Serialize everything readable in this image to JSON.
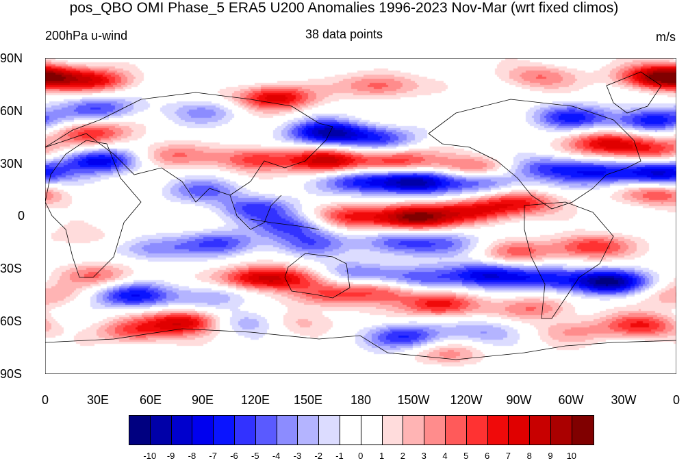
{
  "header": {
    "title": "pos_QBO OMI Phase_5 ERA5 U200 Anomalies 1996-2023 Nov-Mar (wrt fixed climos)",
    "left_subtitle": "200hPa u-wind",
    "center_subtitle": "38 data points",
    "right_subtitle": "m/s"
  },
  "axes": {
    "lat_labels": [
      "90N",
      "60N",
      "30N",
      "0",
      "30S",
      "60S",
      "90S"
    ],
    "lon_labels": [
      "0",
      "30E",
      "60E",
      "90E",
      "120E",
      "150E",
      "180",
      "150W",
      "120W",
      "90W",
      "60W",
      "30W",
      "0"
    ]
  },
  "colorbar": {
    "colors": [
      "#000080",
      "#0000a8",
      "#0000cd",
      "#0000ef",
      "#0a14ff",
      "#3232ff",
      "#5a5aff",
      "#8c8cff",
      "#b4b4ff",
      "#dcdcff",
      "#ffffff",
      "#ffffff",
      "#ffdcdc",
      "#ffb4b4",
      "#ff8c8c",
      "#ff5a5a",
      "#ff3232",
      "#f00a0a",
      "#e00000",
      "#c80000",
      "#aa0000",
      "#800000"
    ],
    "labels": [
      "-10",
      "-9",
      "-8",
      "-7",
      "-6",
      "-5",
      "-4",
      "-3",
      "-2",
      "-1",
      "0",
      "1",
      "2",
      "3",
      "4",
      "5",
      "6",
      "7",
      "8",
      "9",
      "10"
    ]
  },
  "field_blobs": [
    {
      "lon": 0,
      "lat": 80,
      "v": 7
    },
    {
      "lon": 30,
      "lat": 78,
      "v": 6
    },
    {
      "lon": 130,
      "lat": 68,
      "v": 8
    },
    {
      "lon": 190,
      "lat": 75,
      "v": 5
    },
    {
      "lon": 280,
      "lat": 80,
      "v": 4
    },
    {
      "lon": 345,
      "lat": 80,
      "v": 6
    },
    {
      "lon": 30,
      "lat": 62,
      "v": -5
    },
    {
      "lon": 90,
      "lat": 60,
      "v": -3
    },
    {
      "lon": 300,
      "lat": 57,
      "v": -6
    },
    {
      "lon": 345,
      "lat": 55,
      "v": -7
    },
    {
      "lon": 25,
      "lat": 48,
      "v": 6
    },
    {
      "lon": 160,
      "lat": 48,
      "v": -9
    },
    {
      "lon": 190,
      "lat": 45,
      "v": -5
    },
    {
      "lon": 320,
      "lat": 42,
      "v": 7
    },
    {
      "lon": 345,
      "lat": 38,
      "v": 5
    },
    {
      "lon": 30,
      "lat": 32,
      "v": -8
    },
    {
      "lon": 70,
      "lat": 35,
      "v": 4
    },
    {
      "lon": 120,
      "lat": 33,
      "v": 6
    },
    {
      "lon": 160,
      "lat": 32,
      "v": 8
    },
    {
      "lon": 200,
      "lat": 32,
      "v": 6
    },
    {
      "lon": 245,
      "lat": 28,
      "v": 5
    },
    {
      "lon": 210,
      "lat": 20,
      "v": -9
    },
    {
      "lon": 180,
      "lat": 20,
      "v": -6
    },
    {
      "lon": 250,
      "lat": 20,
      "v": -5
    },
    {
      "lon": 285,
      "lat": 28,
      "v": -5
    },
    {
      "lon": 315,
      "lat": 25,
      "v": -6
    },
    {
      "lon": 350,
      "lat": 25,
      "v": -8
    },
    {
      "lon": 350,
      "lat": 13,
      "v": 5
    },
    {
      "lon": 90,
      "lat": 15,
      "v": -4
    },
    {
      "lon": 120,
      "lat": 5,
      "v": -5
    },
    {
      "lon": 140,
      "lat": -5,
      "v": -5
    },
    {
      "lon": 150,
      "lat": -15,
      "v": -4
    },
    {
      "lon": 210,
      "lat": 0,
      "v": 10
    },
    {
      "lon": 175,
      "lat": 0,
      "v": 6
    },
    {
      "lon": 245,
      "lat": 3,
      "v": 6
    },
    {
      "lon": 270,
      "lat": 8,
      "v": 6
    },
    {
      "lon": 100,
      "lat": -15,
      "v": -5
    },
    {
      "lon": 60,
      "lat": -18,
      "v": -4
    },
    {
      "lon": 20,
      "lat": -12,
      "v": 2
    },
    {
      "lon": 200,
      "lat": -15,
      "v": -5
    },
    {
      "lon": 230,
      "lat": -15,
      "v": -3
    },
    {
      "lon": 270,
      "lat": -20,
      "v": 4
    },
    {
      "lon": 310,
      "lat": -17,
      "v": 6
    },
    {
      "lon": 120,
      "lat": -35,
      "v": 7
    },
    {
      "lon": 140,
      "lat": -35,
      "v": 4
    },
    {
      "lon": 175,
      "lat": -32,
      "v": -4
    },
    {
      "lon": 215,
      "lat": -35,
      "v": -5
    },
    {
      "lon": 250,
      "lat": -33,
      "v": -7
    },
    {
      "lon": 285,
      "lat": -35,
      "v": -6
    },
    {
      "lon": 320,
      "lat": -37,
      "v": -10
    },
    {
      "lon": 30,
      "lat": -33,
      "v": 4
    },
    {
      "lon": 50,
      "lat": -45,
      "v": -7
    },
    {
      "lon": 95,
      "lat": -45,
      "v": -3
    },
    {
      "lon": 160,
      "lat": -45,
      "v": 4
    },
    {
      "lon": 225,
      "lat": -50,
      "v": 7
    },
    {
      "lon": 190,
      "lat": -42,
      "v": 5
    },
    {
      "lon": 280,
      "lat": -52,
      "v": 4
    },
    {
      "lon": 80,
      "lat": -60,
      "v": 8
    },
    {
      "lon": 50,
      "lat": -65,
      "v": 5
    },
    {
      "lon": 115,
      "lat": -60,
      "v": -4
    },
    {
      "lon": 145,
      "lat": -60,
      "v": 3
    },
    {
      "lon": 205,
      "lat": -68,
      "v": -6
    },
    {
      "lon": 250,
      "lat": -65,
      "v": -3
    },
    {
      "lon": 340,
      "lat": -62,
      "v": 6
    },
    {
      "lon": 300,
      "lat": -65,
      "v": 3
    },
    {
      "lon": 230,
      "lat": -78,
      "v": 3
    },
    {
      "lon": 0,
      "lat": -45,
      "v": 3
    }
  ]
}
